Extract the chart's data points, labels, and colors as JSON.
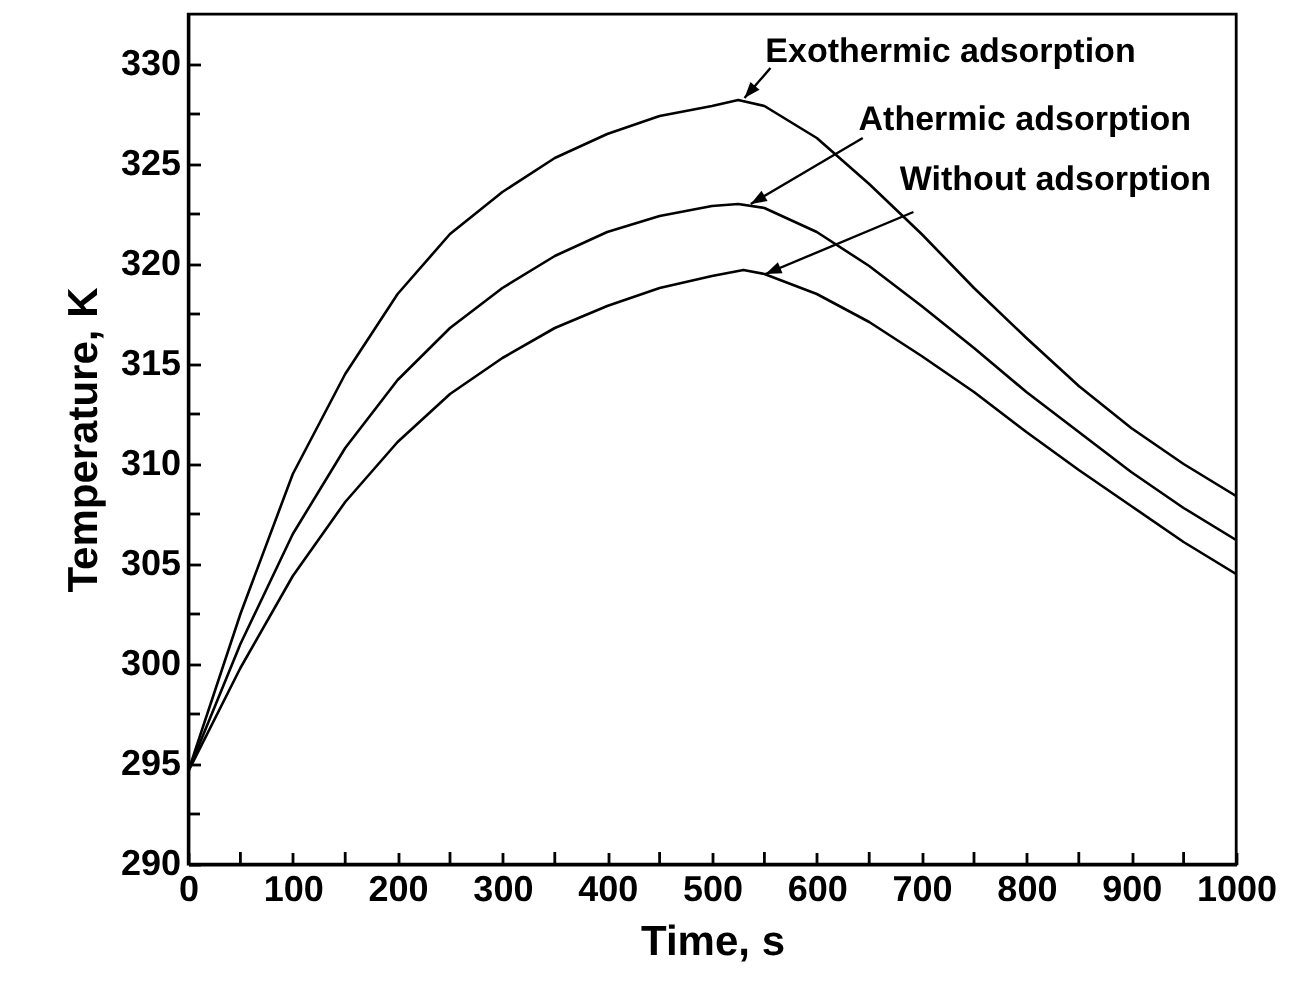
{
  "chart_data": {
    "type": "line",
    "xlabel": "Time, s",
    "ylabel": "Temperature, K",
    "xlim": [
      0,
      1000
    ],
    "ylim": [
      290,
      332.5
    ],
    "xticks": [
      0,
      {
        "value": 50,
        "label": null
      },
      100,
      {
        "value": 150,
        "label": null
      },
      200,
      {
        "value": 250,
        "label": null
      },
      300,
      {
        "value": 350,
        "label": null
      },
      400,
      {
        "value": 450,
        "label": null
      },
      500,
      {
        "value": 550,
        "label": null
      },
      600,
      {
        "value": 650,
        "label": null
      },
      700,
      {
        "value": 750,
        "label": null
      },
      800,
      {
        "value": 850,
        "label": null
      },
      900,
      {
        "value": 950,
        "label": null
      },
      1000
    ],
    "yticks": [
      290,
      {
        "value": 292.5,
        "label": null
      },
      295,
      {
        "value": 297.5,
        "label": null
      },
      300,
      {
        "value": 302.5,
        "label": null
      },
      305,
      {
        "value": 307.5,
        "label": null
      },
      310,
      {
        "value": 312.5,
        "label": null
      },
      315,
      {
        "value": 317.5,
        "label": null
      },
      320,
      {
        "value": 322.5,
        "label": null
      },
      325,
      {
        "value": 327.5,
        "label": null
      },
      330
    ],
    "grid": false,
    "marker": "none",
    "line_style": "solid",
    "annotations": [
      {
        "text": "Exothermic adsorption",
        "x": 531,
        "y": 328.3
      },
      {
        "text": "Athermic adsorption",
        "x": 537,
        "y": 323.0
      },
      {
        "text": "Without adsorption",
        "x": 551,
        "y": 319.5
      }
    ],
    "series": [
      {
        "color": "#000000",
        "x": [
          0,
          50,
          100,
          150,
          200,
          250,
          300,
          350,
          400,
          450,
          500,
          525,
          550,
          600,
          650,
          700,
          750,
          800,
          850,
          900,
          950,
          1000
        ],
        "values": [
          294.6,
          302.5,
          309.5,
          314.5,
          318.5,
          321.5,
          323.6,
          325.3,
          326.5,
          327.4,
          327.9,
          328.2,
          327.9,
          326.3,
          324.0,
          321.5,
          318.8,
          316.3,
          313.9,
          311.8,
          310.0,
          308.4
        ]
      },
      {
        "color": "#000000",
        "x": [
          0,
          50,
          100,
          150,
          200,
          250,
          300,
          350,
          400,
          450,
          500,
          525,
          550,
          600,
          650,
          700,
          750,
          800,
          850,
          900,
          950,
          1000
        ],
        "values": [
          294.6,
          301.0,
          306.5,
          310.8,
          314.2,
          316.8,
          318.8,
          320.4,
          321.6,
          322.4,
          322.9,
          323.0,
          322.8,
          321.6,
          319.9,
          317.9,
          315.8,
          313.6,
          311.6,
          309.6,
          307.8,
          306.2
        ]
      },
      {
        "color": "#000000",
        "x": [
          0,
          50,
          100,
          150,
          200,
          250,
          300,
          350,
          400,
          450,
          500,
          530,
          550,
          600,
          650,
          700,
          750,
          800,
          850,
          900,
          950,
          1000
        ],
        "values": [
          294.6,
          299.8,
          304.4,
          308.1,
          311.1,
          313.5,
          315.3,
          316.8,
          317.9,
          318.8,
          319.4,
          319.7,
          319.5,
          318.5,
          317.1,
          315.4,
          313.6,
          311.6,
          309.7,
          307.9,
          306.1,
          304.5
        ]
      }
    ]
  }
}
